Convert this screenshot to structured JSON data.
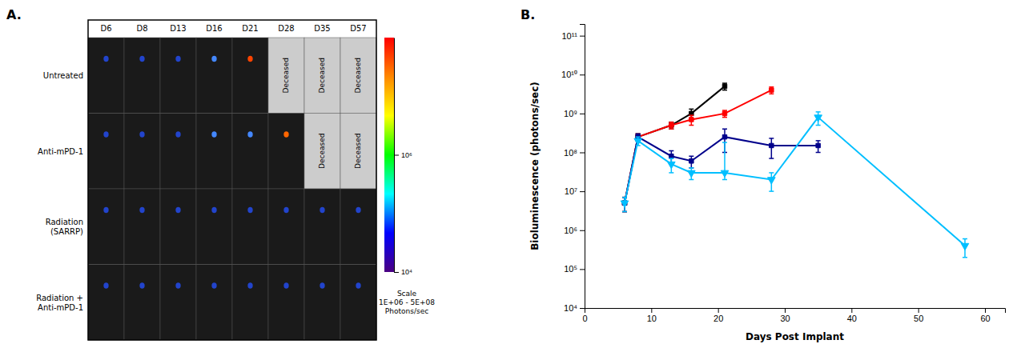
{
  "chart_data": [
    {
      "type": "grid",
      "title": "A.",
      "categories": [
        "D6",
        "D8",
        "D13",
        "D16",
        "D21",
        "D28",
        "D35",
        "D57"
      ],
      "rows": [
        "Untreated",
        "Anti-mPD-1",
        "Radiation\n(SARRP)",
        "Radiation +\nAnti-mPD-1"
      ],
      "cell_labels": [
        [
          null,
          null,
          null,
          null,
          null,
          "Deceased",
          "Deceased",
          "Deceased"
        ],
        [
          null,
          null,
          null,
          null,
          null,
          null,
          "Deceased",
          "Deceased"
        ],
        [
          null,
          null,
          null,
          null,
          null,
          null,
          null,
          null
        ],
        [
          null,
          null,
          null,
          null,
          null,
          null,
          null,
          null
        ]
      ],
      "colors": [
        [
          "#2244cc",
          "#2244cc",
          "#2244cc",
          "#4488ff",
          "#ff4400",
          "#cccccc",
          "#cccccc",
          "#cccccc"
        ],
        [
          "#2244cc",
          "#2244cc",
          "#2244cc",
          "#4488ff",
          "#4488ff",
          "#ff6600",
          "#cccccc",
          "#cccccc"
        ],
        [
          "#2244cc",
          "#2244cc",
          "#2244cc",
          "#2244cc",
          "#2244cc",
          "#2244cc",
          "#2244cc",
          "#2244cc"
        ],
        [
          "#2244cc",
          "#2244cc",
          "#2244cc",
          "#2244cc",
          "#2244cc",
          "#2244cc",
          "#2244cc",
          "#2244cc"
        ]
      ],
      "colorbar_colors": [
        "#4B0082",
        "#0000FF",
        "#00FFFF",
        "#00FF00",
        "#FFFF00",
        "#FF8800",
        "#FF0000"
      ],
      "colorbar_lim": [
        0,
        1
      ],
      "colorbar_ticks": [
        {
          "value": 0,
          "label": "10⁴"
        },
        {
          "value": 0.5,
          "label": "10⁶"
        }
      ],
      "colorbar_label": "Scale\n1E+06 - 5E+08\nPhotons/sec"
    },
    {
      "type": "line",
      "title": "B.",
      "xlabel": "Days Post Implant",
      "ylabel": "Bioluminescence (photons/sec)",
      "log": "y",
      "xlim": [
        0,
        63
      ],
      "xticks": [
        0,
        10,
        20,
        30,
        40,
        50,
        60
      ],
      "ylim": [
        10000.0,
        200000000000.0
      ],
      "yticks": [
        {
          "value": 10000.0,
          "label": "10⁴"
        },
        {
          "value": 100000.0,
          "label": "10⁵"
        },
        {
          "value": 1000000.0,
          "label": "10⁶"
        },
        {
          "value": 10000000.0,
          "label": "10⁷"
        },
        {
          "value": 100000000.0,
          "label": "10⁸"
        },
        {
          "value": 1000000000.0,
          "label": "10⁹"
        },
        {
          "value": 10000000000.0,
          "label": "10¹⁰"
        },
        {
          "value": 100000000000.0,
          "label": "10¹¹"
        }
      ],
      "series": [
        {
          "color": "#000000",
          "marker": "square",
          "x": [
            6,
            8,
            13,
            16,
            21
          ],
          "values": [
            5000000.0,
            250000000.0,
            500000000.0,
            1000000000.0,
            5000000000.0
          ],
          "yerr_lo": [
            2000000.0,
            50000000.0,
            100000000.0,
            300000000.0,
            1000000000.0
          ],
          "yerr_hi": [
            2000000.0,
            50000000.0,
            100000000.0,
            300000000.0,
            1000000000.0
          ]
        },
        {
          "color": "#ff0000",
          "marker": "square",
          "x": [
            6,
            8,
            13,
            16,
            21,
            28
          ],
          "values": [
            5000000.0,
            250000000.0,
            500000000.0,
            700000000.0,
            1000000000.0,
            4000000000.0
          ],
          "yerr_lo": [
            2000000.0,
            50000000.0,
            100000000.0,
            200000000.0,
            200000000.0,
            800000000.0
          ],
          "yerr_hi": [
            2000000.0,
            50000000.0,
            100000000.0,
            200000000.0,
            200000000.0,
            800000000.0
          ]
        },
        {
          "color": "#00008B",
          "marker": "square",
          "x": [
            6,
            8,
            13,
            16,
            21,
            28,
            35
          ],
          "values": [
            5000000.0,
            250000000.0,
            80000000.0,
            60000000.0,
            250000000.0,
            150000000.0,
            150000000.0
          ],
          "yerr_lo": [
            2000000.0,
            50000000.0,
            30000000.0,
            20000000.0,
            150000000.0,
            80000000.0,
            50000000.0
          ],
          "yerr_hi": [
            2000000.0,
            50000000.0,
            30000000.0,
            20000000.0,
            150000000.0,
            80000000.0,
            50000000.0
          ]
        },
        {
          "color": "#00BFFF",
          "marker": "triangle-down",
          "x": [
            6,
            8,
            13,
            16,
            21,
            28,
            35,
            57
          ],
          "values": [
            5000000.0,
            200000000.0,
            50000000.0,
            30000000.0,
            30000000.0,
            20000000.0,
            800000000.0,
            400000.0
          ],
          "yerr_lo": [
            2000000.0,
            50000000.0,
            20000000.0,
            10000000.0,
            10000000.0,
            10000000.0,
            300000000.0,
            200000.0
          ],
          "yerr_hi": [
            2000000.0,
            50000000.0,
            20000000.0,
            10000000.0,
            150000000.0,
            10000000.0,
            300000000.0,
            200000.0
          ]
        }
      ]
    }
  ]
}
